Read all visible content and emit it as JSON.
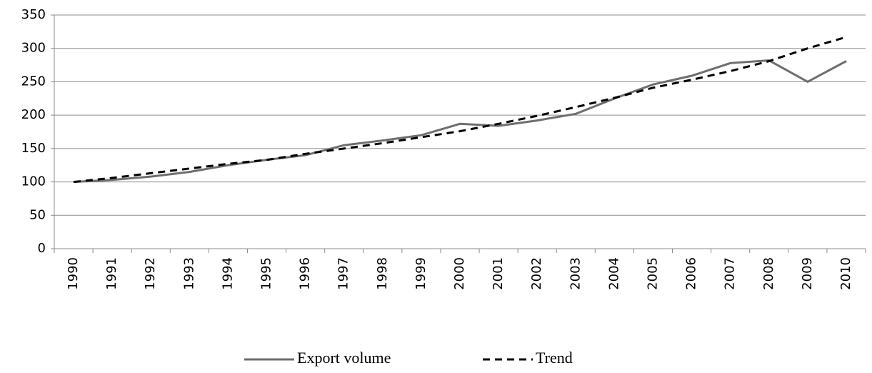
{
  "chart_data": {
    "type": "line",
    "categories": [
      "1990",
      "1991",
      "1992",
      "1993",
      "1994",
      "1995",
      "1996",
      "1997",
      "1998",
      "1999",
      "2000",
      "2001",
      "2002",
      "2003",
      "2004",
      "2005",
      "2006",
      "2007",
      "2008",
      "2009",
      "2010"
    ],
    "series": [
      {
        "name": "Export volume",
        "color": "#6e6e6e",
        "values": [
          100,
          103,
          108,
          115,
          125,
          133,
          140,
          155,
          162,
          170,
          187,
          184,
          192,
          202,
          225,
          246,
          259,
          278,
          282,
          250,
          281
        ]
      },
      {
        "name": "Trend",
        "color": "#000000",
        "dash": true,
        "values": [
          100,
          106,
          113,
          120,
          127,
          133,
          142,
          150,
          158,
          167,
          176,
          187,
          199,
          212,
          226,
          241,
          253,
          266,
          281,
          300,
          317
        ]
      }
    ],
    "ylim": [
      0,
      350
    ],
    "yticks": [
      0,
      50,
      100,
      150,
      200,
      250,
      300,
      350
    ],
    "grid": true,
    "legend": "bottom"
  }
}
